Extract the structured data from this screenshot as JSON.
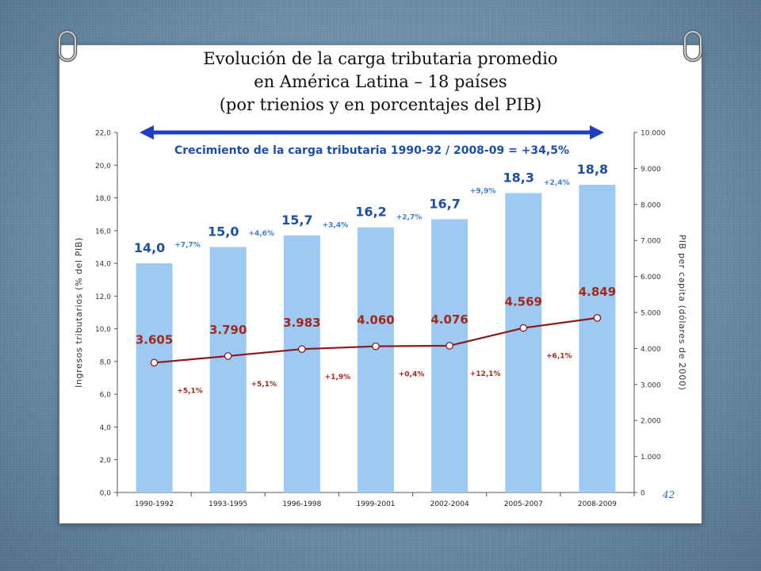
{
  "title_lines": [
    "Evolución de la carga tributaria promedio",
    "en América Latina – 18 países",
    "(por trienios y en porcentajes del PIB)"
  ],
  "page_number": "42",
  "colors": {
    "bar": "#9dc9f2",
    "bar_label": "#1e4fa7",
    "bar_pct": "#3a7fd0",
    "line": "#8b1a1a",
    "line_label": "#a32a1a",
    "arrow": "#1e3fc4",
    "banner": "#1e4fa7"
  },
  "chart_data": {
    "type": "bar",
    "title": "",
    "banner": "Crecimiento de la carga tributaria 1990-92 / 2008-09 = +34,5%",
    "categories": [
      "1990-1992",
      "1993-1995",
      "1996-1998",
      "1999-2001",
      "2002-2004",
      "2005-2007",
      "2008-2009"
    ],
    "ylabel": "Ingresos tributarios (% del PIB)",
    "ylabel2": "PIB per capita (dólares de 2000)",
    "ylim": [
      0,
      22
    ],
    "ylim2": [
      0,
      10000
    ],
    "yticks": [
      "0,0",
      "2,0",
      "4,0",
      "6,0",
      "8,0",
      "10,0",
      "12,0",
      "14,0",
      "16,0",
      "18,0",
      "20,0",
      "22,0"
    ],
    "yticks2": [
      "0",
      "1.000",
      "2.000",
      "3.000",
      "4.000",
      "5.000",
      "6.000",
      "7.000",
      "8.000",
      "9.000",
      "10.000"
    ],
    "grid": false,
    "series": [
      {
        "axis": "left",
        "kind": "bar",
        "values": [
          14.0,
          15.0,
          15.7,
          16.2,
          16.7,
          18.3,
          18.8
        ],
        "labels": [
          "14,0",
          "15,0",
          "15,7",
          "16,2",
          "16,7",
          "18,3",
          "18,8"
        ],
        "changes": [
          "+7,7%",
          "+4,6%",
          "+3,4%",
          "+2,7%",
          "+9,9%",
          "+2,4%"
        ]
      },
      {
        "axis": "right",
        "kind": "line",
        "values": [
          3605,
          3790,
          3983,
          4060,
          4076,
          4569,
          4849
        ],
        "labels": [
          "3.605",
          "3.790",
          "3.983",
          "4.060",
          "4.076",
          "4.569",
          "4.849"
        ],
        "changes": [
          "+5,1%",
          "+5,1%",
          "+1,9%",
          "+0,4%",
          "+12,1%",
          "+6,1%"
        ]
      }
    ]
  }
}
